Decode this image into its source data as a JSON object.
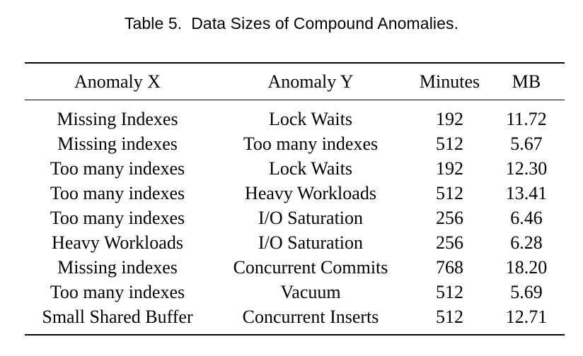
{
  "caption": "Table 5.  Data Sizes of Compound Anomalies.",
  "table": {
    "headers": [
      "Anomaly X",
      "Anomaly Y",
      "Minutes",
      "MB"
    ],
    "rows": [
      [
        "Missing Indexes",
        "Lock Waits",
        "192",
        "11.72"
      ],
      [
        "Missing indexes",
        "Too many indexes",
        "512",
        "5.67"
      ],
      [
        "Too many indexes",
        "Lock Waits",
        "192",
        "12.30"
      ],
      [
        "Too many indexes",
        "Heavy Workloads",
        "512",
        "13.41"
      ],
      [
        "Too many indexes",
        "I/O Saturation",
        "256",
        "6.46"
      ],
      [
        "Heavy Workloads",
        "I/O Saturation",
        "256",
        "6.28"
      ],
      [
        "Missing indexes",
        "Concurrent Commits",
        "768",
        "18.20"
      ],
      [
        "Too many indexes",
        "Vacuum",
        "512",
        "5.69"
      ],
      [
        "Small Shared Buffer",
        "Concurrent Inserts",
        "512",
        "12.71"
      ]
    ]
  }
}
